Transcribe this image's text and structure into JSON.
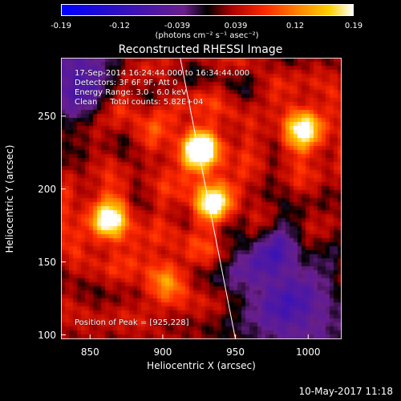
{
  "chart_data": {
    "type": "heatmap",
    "title": "Reconstructed RHESSI Image",
    "xlabel": "Heliocentric X (arcsec)",
    "ylabel": "Heliocentric Y (arcsec)",
    "xlim": [
      830,
      1023
    ],
    "ylim": [
      97,
      290
    ],
    "x_ticks": [
      "850",
      "900",
      "950",
      "1000"
    ],
    "y_ticks": [
      "100",
      "150",
      "200",
      "250"
    ],
    "x_tick_values": [
      850,
      900,
      950,
      1000
    ],
    "y_tick_values": [
      100,
      150,
      200,
      250
    ],
    "colorbar": {
      "ticks": [
        "-0.19",
        "-0.12",
        "-0.039",
        "0.039",
        "0.12",
        "0.19"
      ],
      "tick_values": [
        -0.19,
        -0.12,
        -0.039,
        0.039,
        0.12,
        0.19
      ],
      "min": -0.19,
      "max": 0.19,
      "unit_label": "(photons cm⁻² s⁻¹ asec⁻²)"
    },
    "annotations": [
      "17-Sep-2014 16:24:44.000 to 16:34:44.000",
      "Detectors: 3F 6F 9F, Att 0",
      "Energy Range: 3.0 - 6.0 keV",
      "Clean     Total counts: 5.82E+04"
    ],
    "peak_label": "Position of Peak = [925,228]",
    "peak": {
      "x": 925,
      "y": 228
    },
    "sources": [
      {
        "x": 925,
        "y": 228,
        "amp": 0.19
      },
      {
        "x": 935,
        "y": 188,
        "amp": 0.15
      },
      {
        "x": 862,
        "y": 178,
        "amp": 0.16
      },
      {
        "x": 998,
        "y": 241,
        "amp": 0.15
      },
      {
        "x": 902,
        "y": 140,
        "amp": 0.09
      },
      {
        "x": 875,
        "y": 255,
        "amp": 0.06
      }
    ],
    "limb_line": [
      {
        "x": 912,
        "y": 290
      },
      {
        "x": 950,
        "y": 97
      }
    ],
    "gridlines": false
  },
  "footer_date": "10-May-2017 11:18"
}
